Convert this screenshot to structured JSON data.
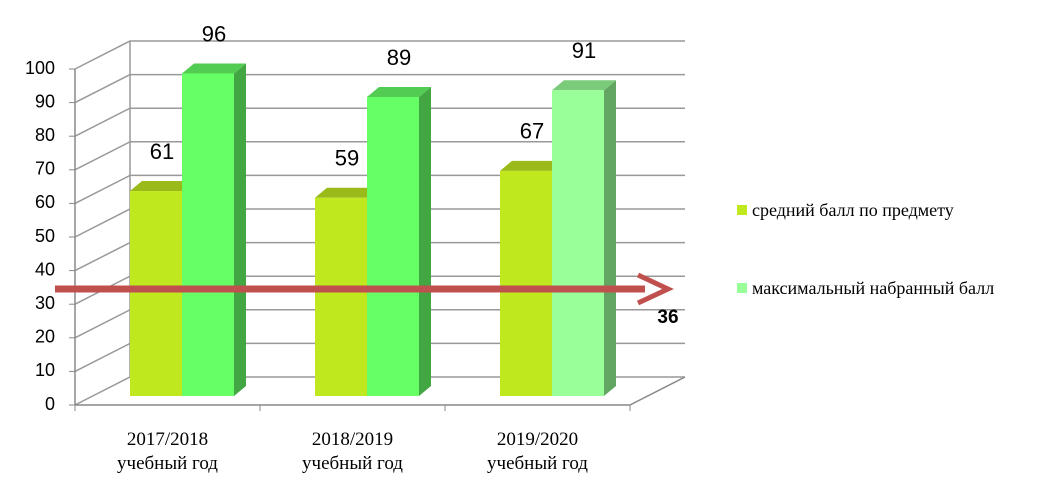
{
  "chart_data": {
    "type": "bar3d",
    "categories": [
      "2017/2018 учебный год",
      "2018/2019 учебный год",
      "2019/2020 учебный год"
    ],
    "series": [
      {
        "name": "средний балл по предмету",
        "color": "#c0e81f",
        "values": [
          61,
          59,
          67
        ]
      },
      {
        "name": "максимальный набранный балл",
        "color": "#99ff99",
        "point_colors": [
          "#66ff66",
          "#66ff66",
          "#99ff99"
        ],
        "values": [
          96,
          89,
          91
        ]
      }
    ],
    "ylim": [
      0,
      100
    ],
    "yticks": [
      0,
      10,
      20,
      30,
      40,
      50,
      60,
      70,
      80,
      90,
      100
    ],
    "grid": true,
    "threshold": 36,
    "threshold_color": "#c0504d",
    "legend": "right"
  }
}
